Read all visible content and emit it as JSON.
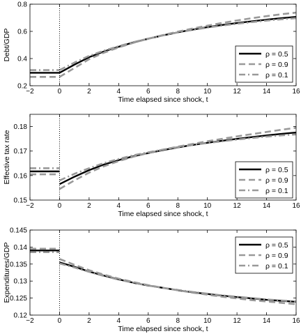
{
  "chart_data": [
    {
      "type": "line",
      "xlabel": "Time elapsed since shock, t",
      "ylabel": "Debt/GDP",
      "xlim": [
        -2,
        16
      ],
      "ylim": [
        0.2,
        0.8
      ],
      "xticks": [
        -2,
        0,
        2,
        4,
        6,
        8,
        10,
        12,
        14,
        16
      ],
      "yticks": [
        0.2,
        0.4,
        0.6,
        0.8
      ],
      "ytick_labels": [
        "0.2",
        "0.4",
        "0.6",
        "0.8"
      ],
      "shock_line_x": 0,
      "grid": false,
      "legend_position": "bottom-right",
      "series": [
        {
          "name": "ρ = 0.5",
          "style": "solid",
          "color": "#000000",
          "pre": 0.295,
          "x": [
            0,
            1,
            2,
            3,
            4,
            5,
            6,
            7,
            8,
            9,
            10,
            11,
            12,
            13,
            14,
            15,
            16
          ],
          "values": [
            0.295,
            0.355,
            0.41,
            0.452,
            0.487,
            0.519,
            0.546,
            0.571,
            0.593,
            0.613,
            0.631,
            0.647,
            0.661,
            0.674,
            0.686,
            0.697,
            0.707
          ]
        },
        {
          "name": "ρ = 0.9",
          "style": "dashed",
          "color": "#999999",
          "pre": 0.265,
          "x": [
            0,
            1,
            2,
            3,
            4,
            5,
            6,
            7,
            8,
            9,
            10,
            11,
            12,
            13,
            14,
            15,
            16
          ],
          "values": [
            0.265,
            0.33,
            0.395,
            0.443,
            0.482,
            0.516,
            0.546,
            0.573,
            0.598,
            0.621,
            0.642,
            0.662,
            0.68,
            0.697,
            0.712,
            0.726,
            0.738
          ]
        },
        {
          "name": "ρ = 0.1",
          "style": "dashdot",
          "color": "#999999",
          "pre": 0.315,
          "x": [
            0,
            1,
            2,
            3,
            4,
            5,
            6,
            7,
            8,
            9,
            10,
            11,
            12,
            13,
            14,
            15,
            16
          ],
          "values": [
            0.315,
            0.37,
            0.42,
            0.458,
            0.491,
            0.521,
            0.547,
            0.571,
            0.592,
            0.611,
            0.628,
            0.643,
            0.656,
            0.668,
            0.679,
            0.689,
            0.697
          ]
        }
      ]
    },
    {
      "type": "line",
      "xlabel": "Time elapsed since shock, t",
      "ylabel": "Effective tax rate",
      "xlim": [
        -2,
        16
      ],
      "ylim": [
        0.15,
        0.185
      ],
      "xticks": [
        -2,
        0,
        2,
        4,
        6,
        8,
        10,
        12,
        14,
        16
      ],
      "yticks": [
        0.15,
        0.16,
        0.17,
        0.18
      ],
      "ytick_labels": [
        "0.15",
        "0.16",
        "0.17",
        "0.18"
      ],
      "shock_line_x": 0,
      "grid": false,
      "legend_position": "bottom-right",
      "series": [
        {
          "name": "ρ = 0.5",
          "style": "solid",
          "color": "#000000",
          "pre": 0.1617,
          "x": [
            0,
            1,
            2,
            3,
            4,
            5,
            6,
            7,
            8,
            9,
            10,
            11,
            12,
            13,
            14,
            15,
            16
          ],
          "values": [
            0.1565,
            0.1595,
            0.1622,
            0.1645,
            0.1663,
            0.1679,
            0.1692,
            0.1704,
            0.1715,
            0.1725,
            0.1734,
            0.1742,
            0.175,
            0.1757,
            0.1764,
            0.177,
            0.1776
          ]
        },
        {
          "name": "ρ = 0.9",
          "style": "dashed",
          "color": "#999999",
          "pre": 0.1605,
          "x": [
            0,
            1,
            2,
            3,
            4,
            5,
            6,
            7,
            8,
            9,
            10,
            11,
            12,
            13,
            14,
            15,
            16
          ],
          "values": [
            0.1545,
            0.158,
            0.1612,
            0.1638,
            0.1659,
            0.1677,
            0.1692,
            0.1706,
            0.1718,
            0.1729,
            0.174,
            0.175,
            0.176,
            0.1769,
            0.1778,
            0.1787,
            0.1795
          ]
        },
        {
          "name": "ρ = 0.1",
          "style": "dashdot",
          "color": "#999999",
          "pre": 0.163,
          "x": [
            0,
            1,
            2,
            3,
            4,
            5,
            6,
            7,
            8,
            9,
            10,
            11,
            12,
            13,
            14,
            15,
            16
          ],
          "values": [
            0.158,
            0.1607,
            0.163,
            0.1651,
            0.1668,
            0.1683,
            0.1695,
            0.1706,
            0.1716,
            0.1725,
            0.1733,
            0.174,
            0.1747,
            0.1753,
            0.1759,
            0.1764,
            0.1768
          ]
        }
      ]
    },
    {
      "type": "line",
      "xlabel": "Time elapsed since shock, t",
      "ylabel": "Expenditures/GDP",
      "xlim": [
        -2,
        16
      ],
      "ylim": [
        0.12,
        0.145
      ],
      "xticks": [
        -2,
        0,
        2,
        4,
        6,
        8,
        10,
        12,
        14,
        16
      ],
      "yticks": [
        0.12,
        0.125,
        0.13,
        0.135,
        0.14,
        0.145
      ],
      "ytick_labels": [
        "0.12",
        "0.125",
        "0.13",
        "0.135",
        "0.14",
        "0.145"
      ],
      "shock_line_x": 0,
      "grid": false,
      "legend_position": "top-right",
      "series": [
        {
          "name": "ρ = 0.5",
          "style": "solid",
          "color": "#000000",
          "pre": 0.139,
          "x": [
            0,
            1,
            2,
            3,
            4,
            5,
            6,
            7,
            8,
            9,
            10,
            11,
            12,
            13,
            14,
            15,
            16
          ],
          "values": [
            0.1355,
            0.1342,
            0.1328,
            0.1316,
            0.1305,
            0.1295,
            0.1287,
            0.128,
            0.1273,
            0.1267,
            0.1262,
            0.1257,
            0.1253,
            0.1249,
            0.1245,
            0.1242,
            0.1239
          ]
        },
        {
          "name": "ρ = 0.9",
          "style": "dashed",
          "color": "#999999",
          "pre": 0.1395,
          "x": [
            0,
            1,
            2,
            3,
            4,
            5,
            6,
            7,
            8,
            9,
            10,
            11,
            12,
            13,
            14,
            15,
            16
          ],
          "values": [
            0.1365,
            0.1348,
            0.1332,
            0.1319,
            0.1307,
            0.1297,
            0.1288,
            0.128,
            0.1273,
            0.1266,
            0.126,
            0.1254,
            0.1249,
            0.1244,
            0.124,
            0.1236,
            0.1232
          ]
        },
        {
          "name": "ρ = 0.1",
          "style": "dashdot",
          "color": "#999999",
          "pre": 0.1385,
          "x": [
            0,
            1,
            2,
            3,
            4,
            5,
            6,
            7,
            8,
            9,
            10,
            11,
            12,
            13,
            14,
            15,
            16
          ],
          "values": [
            0.1352,
            0.134,
            0.1327,
            0.1315,
            0.1304,
            0.1295,
            0.1287,
            0.128,
            0.1274,
            0.1268,
            0.1263,
            0.1258,
            0.1254,
            0.125,
            0.1246,
            0.1243,
            0.124
          ]
        }
      ]
    }
  ]
}
